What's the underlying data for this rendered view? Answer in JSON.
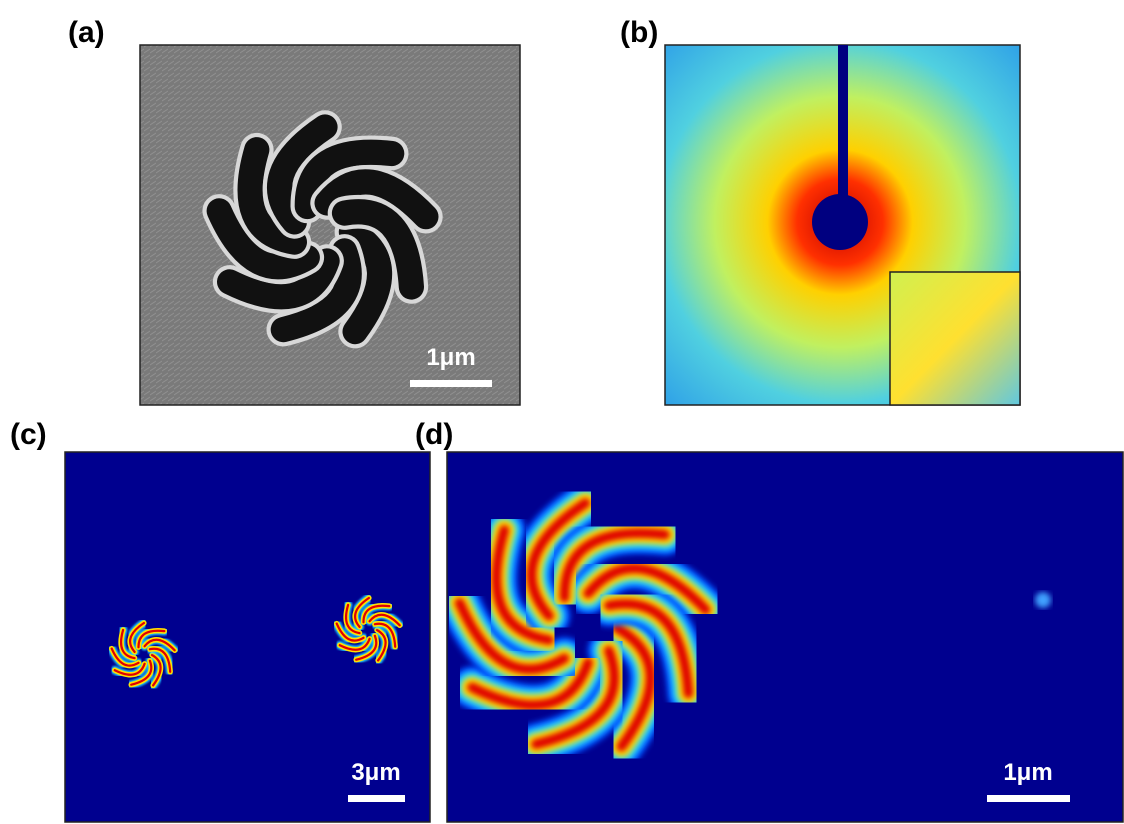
{
  "panels": [
    {
      "label": "(a)",
      "scale_bar": "1μm"
    },
    {
      "label": "(b)"
    },
    {
      "label": "(c)",
      "scale_bar": "3μm"
    },
    {
      "label": "(d)",
      "scale_bar": "1μm"
    }
  ]
}
